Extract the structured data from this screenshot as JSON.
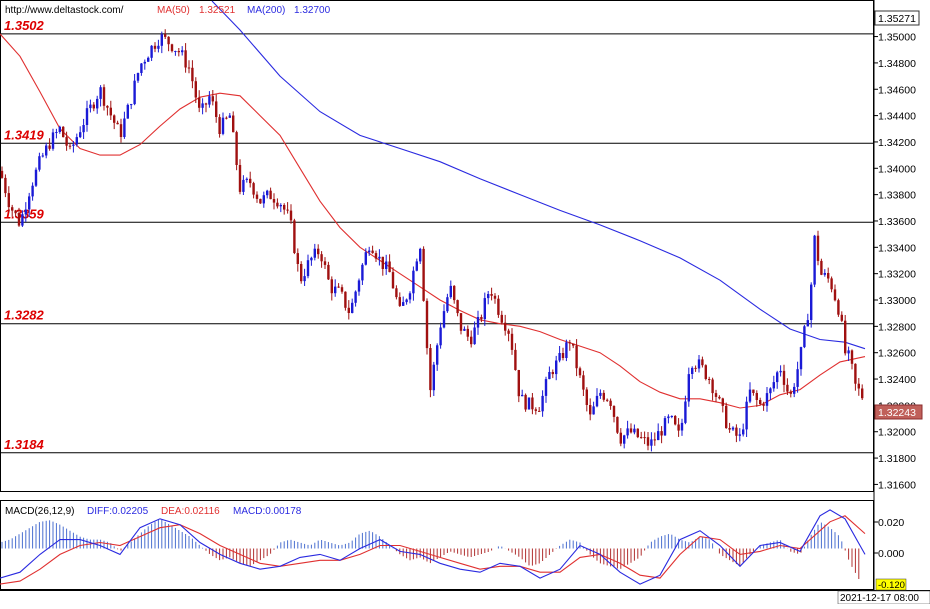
{
  "header": {
    "url": "http://www.deltastock.com/",
    "ma50_label": "MA(50)",
    "ma50_value": "1.32521",
    "ma200_label": "MA(200)",
    "ma200_value": "1.32700"
  },
  "price_panel": {
    "top_price_box": "1.35271",
    "current_price_box": "1.32243",
    "tick_labels": [
      "1.35000",
      "1.34800",
      "1.34600",
      "1.34400",
      "1.34200",
      "1.34000",
      "1.33800",
      "1.33600",
      "1.33400",
      "1.33200",
      "1.33000",
      "1.32800",
      "1.32600",
      "1.32400",
      "1.32200",
      "1.32000",
      "1.31800",
      "1.31600"
    ],
    "levels": [
      {
        "label": "1.3502",
        "value": 1.3502
      },
      {
        "label": "1.3419",
        "value": 1.3419
      },
      {
        "label": "1.3359",
        "value": 1.3359
      },
      {
        "label": "1.3282",
        "value": 1.3282
      },
      {
        "label": "1.3184",
        "value": 1.3184
      }
    ]
  },
  "macd_panel": {
    "title": "MACD(26,12,9)",
    "diff_text": "DIFF:0.02205",
    "dea_text": "DEA:0.02116",
    "macd_text": "MACD:0.00178",
    "tick_labels": [
      "0.020",
      "0.000"
    ],
    "value_box": "-0.120",
    "date_label": "2021-12-17 08:00"
  },
  "colors": {
    "up": "#1a1ad6",
    "down": "#a01010",
    "ma50": "#e03030",
    "ma200": "#2a2ae0",
    "level_text": "#dd0000",
    "macd_hist_up": "#4a6fd0",
    "macd_hist_down": "#b03030"
  },
  "chart_data": {
    "type": "candlestick",
    "y_range": [
      1.3155,
      1.3527
    ],
    "macd_y_range": [
      -0.028,
      0.032
    ],
    "close_path": [
      [
        0,
        1.3398
      ],
      [
        10,
        1.3372
      ],
      [
        20,
        1.3358
      ],
      [
        30,
        1.3385
      ],
      [
        40,
        1.3405
      ],
      [
        50,
        1.342
      ],
      [
        60,
        1.343
      ],
      [
        70,
        1.3412
      ],
      [
        80,
        1.343
      ],
      [
        90,
        1.3445
      ],
      [
        100,
        1.346
      ],
      [
        110,
        1.3442
      ],
      [
        120,
        1.3425
      ],
      [
        130,
        1.345
      ],
      [
        140,
        1.3478
      ],
      [
        150,
        1.349
      ],
      [
        160,
        1.35
      ],
      [
        170,
        1.3495
      ],
      [
        180,
        1.3488
      ],
      [
        190,
        1.3475
      ],
      [
        200,
        1.344
      ],
      [
        210,
        1.3455
      ],
      [
        220,
        1.343
      ],
      [
        230,
        1.344
      ],
      [
        240,
        1.3385
      ],
      [
        250,
        1.339
      ],
      [
        260,
        1.3375
      ],
      [
        270,
        1.338
      ],
      [
        280,
        1.3375
      ],
      [
        290,
        1.336
      ],
      [
        300,
        1.3315
      ],
      [
        310,
        1.333
      ],
      [
        320,
        1.3338
      ],
      [
        330,
        1.331
      ],
      [
        340,
        1.3305
      ],
      [
        350,
        1.329
      ],
      [
        360,
        1.332
      ],
      [
        370,
        1.3345
      ],
      [
        380,
        1.333
      ],
      [
        390,
        1.332
      ],
      [
        400,
        1.329
      ],
      [
        410,
        1.331
      ],
      [
        420,
        1.3345
      ],
      [
        430,
        1.323
      ],
      [
        440,
        1.328
      ],
      [
        450,
        1.331
      ],
      [
        460,
        1.328
      ],
      [
        470,
        1.327
      ],
      [
        480,
        1.3285
      ],
      [
        490,
        1.331
      ],
      [
        500,
        1.329
      ],
      [
        510,
        1.3275
      ],
      [
        520,
        1.3225
      ],
      [
        530,
        1.322
      ],
      [
        540,
        1.322
      ],
      [
        550,
        1.3245
      ],
      [
        560,
        1.3255
      ],
      [
        570,
        1.327
      ],
      [
        580,
        1.324
      ],
      [
        590,
        1.321
      ],
      [
        600,
        1.323
      ],
      [
        610,
        1.3225
      ],
      [
        620,
        1.3195
      ],
      [
        630,
        1.32
      ],
      [
        640,
        1.3195
      ],
      [
        650,
        1.319
      ],
      [
        660,
        1.32
      ],
      [
        670,
        1.321
      ],
      [
        680,
        1.3195
      ],
      [
        690,
        1.3255
      ],
      [
        700,
        1.325
      ],
      [
        710,
        1.324
      ],
      [
        720,
        1.322
      ],
      [
        730,
        1.32
      ],
      [
        740,
        1.3195
      ],
      [
        750,
        1.323
      ],
      [
        760,
        1.322
      ],
      [
        770,
        1.323
      ],
      [
        780,
        1.325
      ],
      [
        790,
        1.3225
      ],
      [
        800,
        1.3255
      ],
      [
        810,
        1.33
      ],
      [
        815,
        1.335
      ],
      [
        820,
        1.332
      ],
      [
        830,
        1.3315
      ],
      [
        840,
        1.329
      ],
      [
        845,
        1.326
      ],
      [
        850,
        1.3255
      ],
      [
        855,
        1.3235
      ],
      [
        865,
        1.3224
      ]
    ],
    "ma50_path": [
      [
        0,
        1.3502
      ],
      [
        20,
        1.3485
      ],
      [
        40,
        1.3458
      ],
      [
        60,
        1.343
      ],
      [
        80,
        1.3415
      ],
      [
        100,
        1.341
      ],
      [
        120,
        1.341
      ],
      [
        140,
        1.3418
      ],
      [
        160,
        1.3432
      ],
      [
        180,
        1.3445
      ],
      [
        200,
        1.3454
      ],
      [
        220,
        1.3457
      ],
      [
        240,
        1.3455
      ],
      [
        260,
        1.344
      ],
      [
        280,
        1.3425
      ],
      [
        300,
        1.34
      ],
      [
        320,
        1.3375
      ],
      [
        340,
        1.3355
      ],
      [
        360,
        1.334
      ],
      [
        380,
        1.333
      ],
      [
        400,
        1.332
      ],
      [
        420,
        1.331
      ],
      [
        440,
        1.33
      ],
      [
        460,
        1.3292
      ],
      [
        480,
        1.3285
      ],
      [
        500,
        1.3282
      ],
      [
        520,
        1.328
      ],
      [
        540,
        1.3276
      ],
      [
        560,
        1.327
      ],
      [
        580,
        1.3265
      ],
      [
        600,
        1.326
      ],
      [
        620,
        1.325
      ],
      [
        640,
        1.3238
      ],
      [
        660,
        1.323
      ],
      [
        680,
        1.3225
      ],
      [
        700,
        1.3225
      ],
      [
        720,
        1.3222
      ],
      [
        740,
        1.3218
      ],
      [
        760,
        1.322
      ],
      [
        780,
        1.3228
      ],
      [
        800,
        1.3232
      ],
      [
        820,
        1.3243
      ],
      [
        840,
        1.3253
      ],
      [
        865,
        1.3257
      ]
    ],
    "ma200_path": [
      [
        212,
        1.3527
      ],
      [
        240,
        1.3505
      ],
      [
        280,
        1.347
      ],
      [
        320,
        1.3443
      ],
      [
        360,
        1.3425
      ],
      [
        400,
        1.3415
      ],
      [
        440,
        1.3405
      ],
      [
        480,
        1.3392
      ],
      [
        520,
        1.338
      ],
      [
        560,
        1.3368
      ],
      [
        600,
        1.3357
      ],
      [
        640,
        1.3345
      ],
      [
        680,
        1.3332
      ],
      [
        720,
        1.3315
      ],
      [
        760,
        1.3293
      ],
      [
        790,
        1.3278
      ],
      [
        820,
        1.327
      ],
      [
        845,
        1.3268
      ],
      [
        865,
        1.3263
      ]
    ],
    "macd_hist": [
      [
        0,
        0.004
      ],
      [
        10,
        0.006
      ],
      [
        20,
        0.01
      ],
      [
        30,
        0.014
      ],
      [
        40,
        0.018
      ],
      [
        50,
        0.019
      ],
      [
        60,
        0.016
      ],
      [
        70,
        0.012
      ],
      [
        80,
        0.008
      ],
      [
        90,
        0.006
      ],
      [
        100,
        0.006
      ],
      [
        110,
        0.004
      ],
      [
        120,
        -0.002
      ],
      [
        130,
        0.004
      ],
      [
        140,
        0.01
      ],
      [
        150,
        0.016
      ],
      [
        160,
        0.02
      ],
      [
        170,
        0.016
      ],
      [
        180,
        0.012
      ],
      [
        190,
        0.008
      ],
      [
        200,
        0.002
      ],
      [
        210,
        -0.004
      ],
      [
        220,
        -0.008
      ],
      [
        230,
        -0.006
      ],
      [
        240,
        -0.01
      ],
      [
        250,
        -0.012
      ],
      [
        260,
        -0.008
      ],
      [
        270,
        -0.004
      ],
      [
        280,
        0.004
      ],
      [
        290,
        0.006
      ],
      [
        300,
        0.004
      ],
      [
        310,
        0.002
      ],
      [
        320,
        0.006
      ],
      [
        330,
        0.004
      ],
      [
        340,
        0.002
      ],
      [
        350,
        0.004
      ],
      [
        360,
        0.01
      ],
      [
        370,
        0.012
      ],
      [
        380,
        0.008
      ],
      [
        390,
        0.002
      ],
      [
        400,
        -0.004
      ],
      [
        410,
        -0.008
      ],
      [
        420,
        -0.006
      ],
      [
        430,
        -0.01
      ],
      [
        440,
        -0.006
      ],
      [
        450,
        -0.002
      ],
      [
        460,
        -0.004
      ],
      [
        470,
        -0.006
      ],
      [
        480,
        -0.004
      ],
      [
        490,
        -0.002
      ],
      [
        500,
        0.002
      ],
      [
        510,
        -0.002
      ],
      [
        520,
        -0.006
      ],
      [
        530,
        -0.012
      ],
      [
        540,
        -0.01
      ],
      [
        550,
        -0.004
      ],
      [
        560,
        0.002
      ],
      [
        570,
        0.006
      ],
      [
        580,
        0.004
      ],
      [
        590,
        -0.004
      ],
      [
        600,
        -0.01
      ],
      [
        610,
        -0.012
      ],
      [
        620,
        -0.014
      ],
      [
        630,
        -0.01
      ],
      [
        640,
        -0.006
      ],
      [
        650,
        0.004
      ],
      [
        660,
        0.008
      ],
      [
        670,
        0.01
      ],
      [
        680,
        0.006
      ],
      [
        690,
        0.004
      ],
      [
        700,
        0.008
      ],
      [
        710,
        0.006
      ],
      [
        720,
        -0.004
      ],
      [
        730,
        -0.008
      ],
      [
        740,
        -0.012
      ],
      [
        750,
        -0.004
      ],
      [
        760,
        0.002
      ],
      [
        770,
        0.004
      ],
      [
        780,
        0.006
      ],
      [
        790,
        -0.002
      ],
      [
        800,
        -0.004
      ],
      [
        810,
        0.008
      ],
      [
        820,
        0.018
      ],
      [
        830,
        0.014
      ],
      [
        840,
        0.008
      ],
      [
        850,
        -0.01
      ],
      [
        860,
        -0.022
      ]
    ],
    "macd_diff": [
      [
        0,
        -0.02
      ],
      [
        20,
        -0.016
      ],
      [
        40,
        -0.004
      ],
      [
        60,
        0.006
      ],
      [
        80,
        0.006
      ],
      [
        100,
        0.002
      ],
      [
        120,
        -0.004
      ],
      [
        140,
        0.014
      ],
      [
        160,
        0.02
      ],
      [
        180,
        0.016
      ],
      [
        200,
        0.004
      ],
      [
        220,
        -0.004
      ],
      [
        240,
        -0.01
      ],
      [
        260,
        -0.014
      ],
      [
        280,
        -0.012
      ],
      [
        300,
        -0.006
      ],
      [
        320,
        -0.004
      ],
      [
        340,
        -0.008
      ],
      [
        360,
        0.0
      ],
      [
        380,
        0.006
      ],
      [
        400,
        -0.002
      ],
      [
        420,
        -0.004
      ],
      [
        440,
        -0.01
      ],
      [
        460,
        -0.014
      ],
      [
        480,
        -0.016
      ],
      [
        500,
        -0.01
      ],
      [
        520,
        -0.012
      ],
      [
        540,
        -0.02
      ],
      [
        560,
        -0.014
      ],
      [
        580,
        0.002
      ],
      [
        600,
        -0.004
      ],
      [
        620,
        -0.016
      ],
      [
        640,
        -0.024
      ],
      [
        660,
        -0.018
      ],
      [
        680,
        0.006
      ],
      [
        700,
        0.012
      ],
      [
        720,
        0.002
      ],
      [
        740,
        -0.012
      ],
      [
        760,
        0.002
      ],
      [
        780,
        0.004
      ],
      [
        800,
        -0.002
      ],
      [
        820,
        0.022
      ],
      [
        830,
        0.026
      ],
      [
        845,
        0.02
      ],
      [
        865,
        -0.004
      ]
    ],
    "macd_dea": [
      [
        0,
        -0.024
      ],
      [
        20,
        -0.022
      ],
      [
        40,
        -0.014
      ],
      [
        60,
        -0.004
      ],
      [
        80,
        0.002
      ],
      [
        100,
        0.004
      ],
      [
        120,
        0.002
      ],
      [
        140,
        0.008
      ],
      [
        160,
        0.014
      ],
      [
        180,
        0.016
      ],
      [
        200,
        0.01
      ],
      [
        220,
        0.002
      ],
      [
        240,
        -0.004
      ],
      [
        260,
        -0.01
      ],
      [
        280,
        -0.012
      ],
      [
        300,
        -0.01
      ],
      [
        320,
        -0.008
      ],
      [
        340,
        -0.008
      ],
      [
        360,
        -0.004
      ],
      [
        380,
        0.002
      ],
      [
        400,
        0.002
      ],
      [
        420,
        -0.002
      ],
      [
        440,
        -0.006
      ],
      [
        460,
        -0.01
      ],
      [
        480,
        -0.014
      ],
      [
        500,
        -0.012
      ],
      [
        520,
        -0.012
      ],
      [
        540,
        -0.016
      ],
      [
        560,
        -0.016
      ],
      [
        580,
        -0.006
      ],
      [
        600,
        -0.004
      ],
      [
        620,
        -0.01
      ],
      [
        640,
        -0.018
      ],
      [
        660,
        -0.02
      ],
      [
        680,
        -0.004
      ],
      [
        700,
        0.008
      ],
      [
        720,
        0.006
      ],
      [
        740,
        -0.004
      ],
      [
        760,
        -0.002
      ],
      [
        780,
        0.002
      ],
      [
        800,
        0.0
      ],
      [
        820,
        0.012
      ],
      [
        830,
        0.018
      ],
      [
        845,
        0.022
      ],
      [
        865,
        0.01
      ]
    ]
  }
}
